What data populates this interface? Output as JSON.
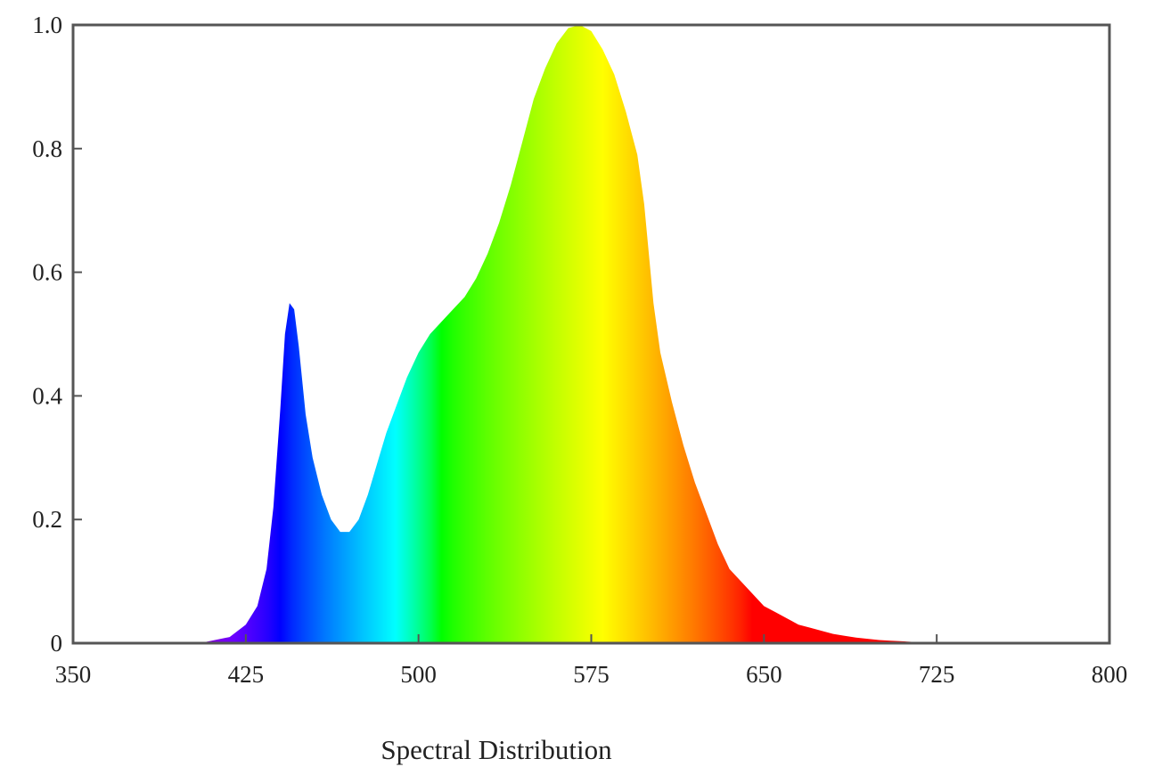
{
  "chart_data": {
    "type": "area",
    "title": "",
    "xlabel": "Spectral Distribution",
    "ylabel": "",
    "xlim": [
      350,
      800
    ],
    "ylim": [
      0,
      1.0
    ],
    "xticks": [
      350,
      425,
      500,
      575,
      650,
      725,
      800
    ],
    "yticks": [
      0,
      0.2,
      0.4,
      0.6,
      0.8,
      1.0
    ],
    "ytick_labels": [
      "0",
      "0.2",
      "0.4",
      "0.6",
      "0.8",
      "1.0"
    ],
    "xtick_labels": [
      "350",
      "425",
      "500",
      "575",
      "650",
      "725",
      "800"
    ],
    "grid": false,
    "fill": "visible-spectrum gradient (wavelength-colored)",
    "series": [
      {
        "x": [
          380,
          405,
          418,
          425,
          430,
          434,
          437,
          440,
          442,
          444,
          446,
          448,
          451,
          454,
          458,
          462,
          466,
          470,
          474,
          478,
          482,
          486,
          490,
          495,
          500,
          505,
          510,
          515,
          520,
          525,
          530,
          535,
          540,
          545,
          550,
          555,
          560,
          565,
          570,
          575,
          580,
          585,
          590,
          595,
          598,
          600,
          602,
          605,
          610,
          615,
          620,
          625,
          630,
          635,
          640,
          645,
          650,
          655,
          660,
          665,
          670,
          675,
          680,
          685,
          690,
          695,
          700,
          705,
          710,
          715,
          720,
          725,
          730,
          735,
          740,
          745,
          750,
          755,
          760,
          765,
          770,
          775,
          780
        ],
        "y": [
          0.0,
          0.0,
          0.01,
          0.03,
          0.06,
          0.12,
          0.22,
          0.38,
          0.5,
          0.55,
          0.54,
          0.48,
          0.37,
          0.3,
          0.24,
          0.2,
          0.18,
          0.18,
          0.2,
          0.24,
          0.29,
          0.34,
          0.38,
          0.43,
          0.47,
          0.5,
          0.52,
          0.54,
          0.56,
          0.59,
          0.63,
          0.68,
          0.74,
          0.81,
          0.88,
          0.93,
          0.97,
          0.995,
          1.0,
          0.99,
          0.96,
          0.92,
          0.86,
          0.79,
          0.71,
          0.63,
          0.55,
          0.47,
          0.39,
          0.32,
          0.26,
          0.21,
          0.16,
          0.12,
          0.1,
          0.08,
          0.06,
          0.05,
          0.04,
          0.03,
          0.025,
          0.02,
          0.015,
          0.012,
          0.009,
          0.007,
          0.005,
          0.004,
          0.003,
          0.002,
          0.0015,
          0.001,
          0.0008,
          0.0006,
          0.0004,
          0.0003,
          0.0002,
          0.0001,
          0.0,
          0.0,
          0.0,
          0.0,
          0.0
        ]
      }
    ]
  }
}
